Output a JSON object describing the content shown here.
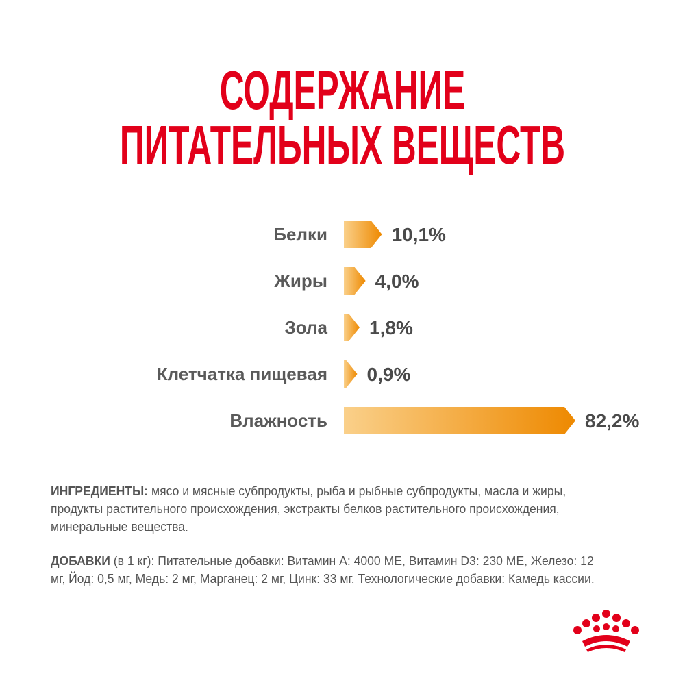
{
  "chart_data": {
    "type": "bar",
    "orientation": "horizontal",
    "title": "СОДЕРЖАНИЕ ПИТАТЕЛЬНЫХ ВЕЩЕСТВ",
    "categories": [
      "Белки",
      "Жиры",
      "Зола",
      "Клетчатка пищевая",
      "Влажность"
    ],
    "values": [
      10.1,
      4.0,
      1.8,
      0.9,
      82.2
    ],
    "value_labels": [
      "10,1%",
      "4,0%",
      "1,8%",
      "0,9%",
      "82,2%"
    ],
    "color": [
      "#fad08a",
      "#ee8900"
    ]
  },
  "ingredients": {
    "label": "ИНГРЕДИЕНТЫ:",
    "text": "мясо и мясные субпродукты, рыба и рыбные субпродукты, масла и жиры, продукты растительного происхождения, экстракты белков растительного происхождения, минеральные вещества."
  },
  "additives": {
    "label": "ДОБАВКИ",
    "text": "(в 1 кг): Питательные добавки: Витамин А: 4000 МЕ, Витамин D3: 230 МЕ, Железо: 12 мг, Йод: 0,5 мг, Медь: 2 мг, Марганец: 2 мг, Цинк: 33 мг. Технологические добавки: Камедь кассии."
  }
}
